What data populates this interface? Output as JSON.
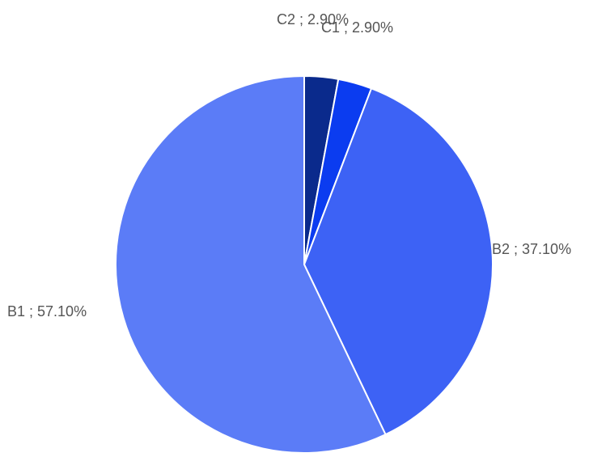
{
  "chart_data": {
    "type": "pie",
    "slices": [
      {
        "label": "C2",
        "value": 2.9,
        "display": "C2 ; 2.90%",
        "color": "#0a2a8c"
      },
      {
        "label": "C1",
        "value": 2.9,
        "display": "C1 ; 2.90%",
        "color": "#0b3cf0"
      },
      {
        "label": "B2",
        "value": 37.1,
        "display": "B2 ; 37.10%",
        "color": "#3d62f5"
      },
      {
        "label": "B1",
        "value": 57.1,
        "display": "B1 ; 57.10%",
        "color": "#5b7cf7"
      }
    ],
    "start_angle": "12 o'clock",
    "direction": "clockwise",
    "legend": "none"
  }
}
